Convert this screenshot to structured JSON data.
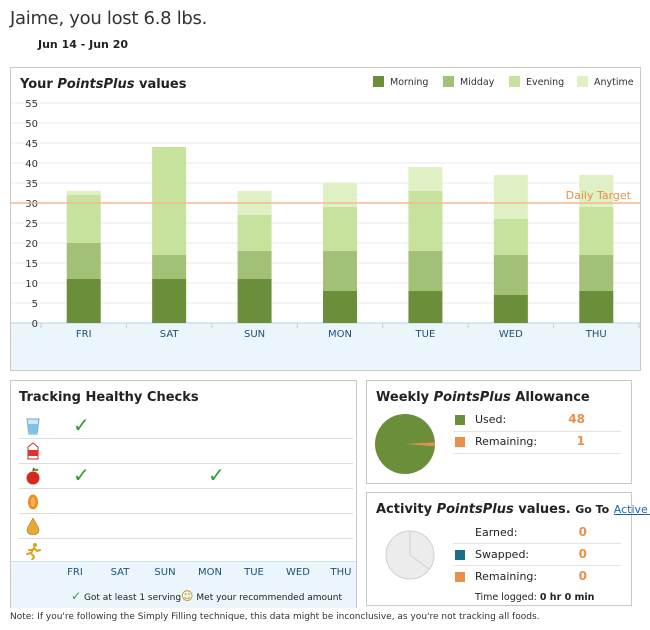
{
  "header": {
    "headline": "Jaime, you lost 6.8 lbs.",
    "date_range": "Jun 14 - Jun 20"
  },
  "chart_panel": {
    "title_prefix": "Your ",
    "title_brand": "PointsPlus",
    "title_suffix": " values",
    "target_label": "Daily Target"
  },
  "colors": {
    "morning": "#6b8e3a",
    "midday": "#a3c077",
    "evening": "#c6e29c",
    "anytime": "#def0c4",
    "target": "#f2b98c",
    "band": "#eaf6fb"
  },
  "chart_data": {
    "type": "bar",
    "stacked": true,
    "categories": [
      "FRI",
      "SAT",
      "SUN",
      "MON",
      "TUE",
      "WED",
      "THU"
    ],
    "series": [
      {
        "name": "Morning",
        "values": [
          11,
          11,
          11,
          8,
          8,
          7,
          8
        ]
      },
      {
        "name": "Midday",
        "values": [
          9,
          6,
          7,
          10,
          10,
          10,
          9
        ]
      },
      {
        "name": "Evening",
        "values": [
          12,
          27,
          9,
          11,
          15,
          9,
          12
        ]
      },
      {
        "name": "Anytime",
        "values": [
          1,
          0,
          6,
          6,
          6,
          11,
          8
        ]
      }
    ],
    "ylim": [
      0,
      55
    ],
    "yticks": [
      "0",
      "5",
      "10",
      "15",
      "20",
      "25",
      "30",
      "35",
      "40",
      "45",
      "50",
      "55"
    ],
    "target": 30,
    "target_label": "Daily Target",
    "legend_position": "top-right",
    "grid": true
  },
  "checks": {
    "title": "Tracking Healthy Checks",
    "rows": [
      {
        "icon": "water-glass-icon",
        "ticks": [
          true,
          false,
          false,
          false,
          false,
          false,
          false
        ]
      },
      {
        "icon": "milk-carton-icon",
        "ticks": [
          false,
          false,
          false,
          false,
          false,
          false,
          false
        ]
      },
      {
        "icon": "apple-icon",
        "ticks": [
          true,
          false,
          false,
          true,
          false,
          false,
          false
        ]
      },
      {
        "icon": "capsule-icon",
        "ticks": [
          false,
          false,
          false,
          false,
          false,
          false,
          false
        ]
      },
      {
        "icon": "oil-drop-icon",
        "ticks": [
          false,
          false,
          false,
          false,
          false,
          false,
          false
        ]
      },
      {
        "icon": "running-person-icon",
        "ticks": [
          false,
          false,
          false,
          false,
          false,
          false,
          false
        ]
      }
    ],
    "days": [
      "FRI",
      "SAT",
      "SUN",
      "MON",
      "TUE",
      "WED",
      "THU"
    ],
    "tick_glyph": "✓",
    "key_served": "Got at least 1 serving",
    "key_smiley": "☺",
    "key_met": "Met your recommended amount"
  },
  "allowance": {
    "title_prefix": "Weekly ",
    "title_brand": "PointsPlus",
    "title_suffix": " Allowance",
    "used_label": "Used:",
    "used_value": "48",
    "remaining_label": "Remaining:",
    "remaining_value": "1"
  },
  "activity": {
    "title_prefix": "Activity ",
    "title_brand": "PointsPlus",
    "title_suffix": " values.",
    "goto_label": "Go To",
    "link_label": "Active Link",
    "earned_label": "Earned:",
    "earned_value": "0",
    "swapped_label": "Swapped:",
    "swapped_value": "0",
    "remaining_label": "Remaining:",
    "remaining_value": "0",
    "time_label": "Time logged:",
    "time_value": "0 hr 0 min"
  },
  "note": "Note: If you're following the Simply Filling technique, this data might be inconclusive, as you're not tracking all foods."
}
